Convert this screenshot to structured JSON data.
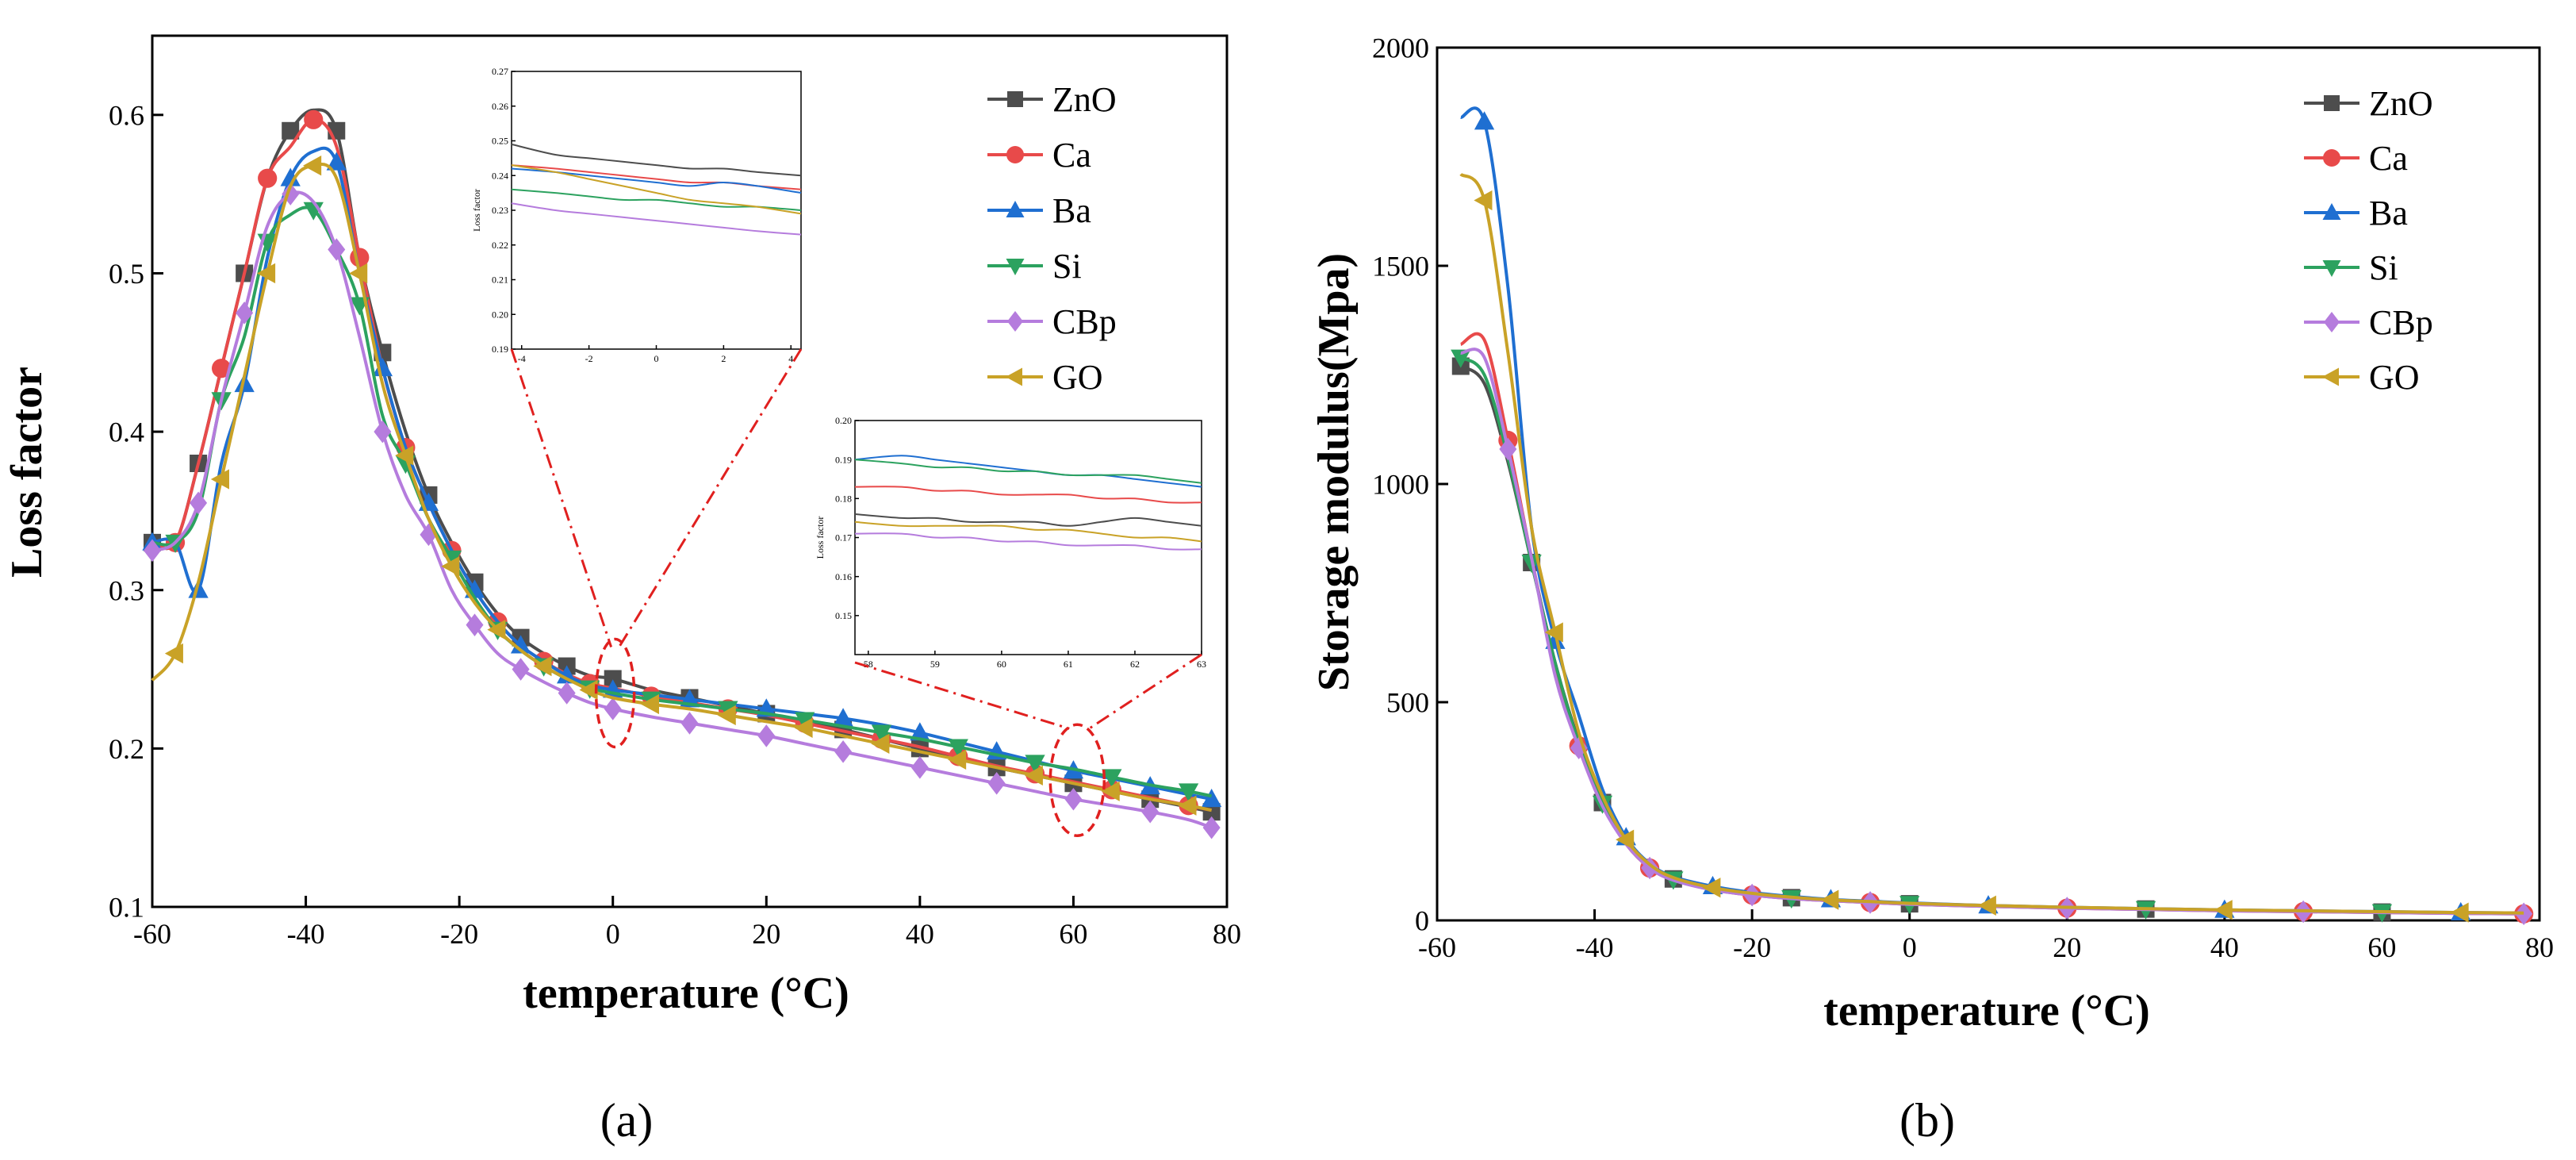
{
  "panels": {
    "a": {
      "label": "(a)"
    },
    "b": {
      "label": "(b)"
    }
  },
  "chart_data": [
    {
      "panel": "(a)",
      "type": "line",
      "xlabel": "temperature (°C)",
      "ylabel": "Loss factor",
      "xlim": [
        -60,
        80
      ],
      "ylim": [
        0.1,
        0.65
      ],
      "xticks": [
        -60,
        -40,
        -20,
        0,
        20,
        40,
        60,
        80
      ],
      "yticks": [
        0.1,
        0.2,
        0.3,
        0.4,
        0.5,
        0.6
      ],
      "x": [
        -60,
        -57,
        -54,
        -51,
        -48,
        -45,
        -42,
        -39,
        -36,
        -33,
        -30,
        -27,
        -24,
        -21,
        -18,
        -15,
        -12,
        -9,
        -6,
        -3,
        0,
        5,
        10,
        15,
        20,
        25,
        30,
        35,
        40,
        45,
        50,
        55,
        60,
        65,
        70,
        75,
        78
      ],
      "series": [
        {
          "name": "ZnO",
          "marker": "square",
          "color": "#4d4d4d",
          "values": [
            0.33,
            0.33,
            0.38,
            0.44,
            0.5,
            0.56,
            0.59,
            0.603,
            0.59,
            0.51,
            0.45,
            0.4,
            0.36,
            0.33,
            0.305,
            0.285,
            0.27,
            0.26,
            0.252,
            0.246,
            0.244,
            0.237,
            0.232,
            0.227,
            0.222,
            0.217,
            0.212,
            0.206,
            0.2,
            0.194,
            0.188,
            0.183,
            0.178,
            0.173,
            0.168,
            0.163,
            0.16
          ]
        },
        {
          "name": "Ca",
          "marker": "circle",
          "color": "#e84a4a",
          "values": [
            0.33,
            0.33,
            0.38,
            0.44,
            0.5,
            0.56,
            0.58,
            0.597,
            0.58,
            0.51,
            0.44,
            0.39,
            0.355,
            0.325,
            0.3,
            0.28,
            0.265,
            0.255,
            0.247,
            0.241,
            0.238,
            0.233,
            0.229,
            0.225,
            0.221,
            0.216,
            0.211,
            0.206,
            0.201,
            0.195,
            0.189,
            0.184,
            0.179,
            0.174,
            0.169,
            0.164,
            0.161
          ]
        },
        {
          "name": "Ba",
          "marker": "triangle-up",
          "color": "#1f6fd1",
          "values": [
            0.33,
            0.33,
            0.3,
            0.38,
            0.43,
            0.51,
            0.56,
            0.577,
            0.57,
            0.5,
            0.44,
            0.39,
            0.355,
            0.325,
            0.3,
            0.28,
            0.265,
            0.255,
            0.246,
            0.24,
            0.237,
            0.234,
            0.231,
            0.228,
            0.225,
            0.222,
            0.219,
            0.215,
            0.21,
            0.204,
            0.198,
            0.192,
            0.186,
            0.181,
            0.176,
            0.171,
            0.168
          ]
        },
        {
          "name": "Si",
          "marker": "triangle-down",
          "color": "#2ca25f",
          "values": [
            0.33,
            0.33,
            0.35,
            0.42,
            0.46,
            0.52,
            0.537,
            0.54,
            0.515,
            0.48,
            0.41,
            0.38,
            0.345,
            0.32,
            0.295,
            0.275,
            0.262,
            0.252,
            0.244,
            0.238,
            0.235,
            0.231,
            0.228,
            0.225,
            0.222,
            0.218,
            0.214,
            0.21,
            0.206,
            0.201,
            0.196,
            0.191,
            0.187,
            0.182,
            0.177,
            0.173,
            0.17
          ]
        },
        {
          "name": "CBp",
          "marker": "diamond",
          "color": "#b57cdd",
          "values": [
            0.325,
            0.33,
            0.355,
            0.42,
            0.475,
            0.53,
            0.55,
            0.545,
            0.515,
            0.46,
            0.4,
            0.36,
            0.335,
            0.3,
            0.278,
            0.26,
            0.25,
            0.242,
            0.235,
            0.229,
            0.225,
            0.22,
            0.216,
            0.212,
            0.208,
            0.203,
            0.198,
            0.193,
            0.188,
            0.183,
            0.178,
            0.173,
            0.168,
            0.164,
            0.16,
            0.155,
            0.15
          ]
        },
        {
          "name": "GO",
          "marker": "triangle-left",
          "color": "#c9a227",
          "values": [
            0.243,
            0.26,
            0.305,
            0.37,
            0.435,
            0.5,
            0.555,
            0.568,
            0.56,
            0.5,
            0.43,
            0.385,
            0.345,
            0.315,
            0.292,
            0.275,
            0.262,
            0.252,
            0.244,
            0.237,
            0.232,
            0.228,
            0.225,
            0.221,
            0.217,
            0.213,
            0.208,
            0.203,
            0.198,
            0.193,
            0.188,
            0.183,
            0.178,
            0.173,
            0.168,
            0.164,
            0.161
          ]
        }
      ],
      "insets": [
        {
          "ylabel": "Loss factor",
          "xlim": [
            -4.3,
            4.3
          ],
          "ylim": [
            0.19,
            0.27
          ],
          "xticks": [
            -4,
            -2,
            0,
            2,
            4
          ],
          "yticks": [
            0.19,
            0.2,
            0.21,
            0.22,
            0.23,
            0.24,
            0.25,
            0.26,
            0.27
          ],
          "x": [
            -4.3,
            -3,
            -2,
            -1,
            0,
            1,
            2,
            3,
            4.3
          ],
          "series": [
            {
              "name": "ZnO",
              "values": [
                0.249,
                0.246,
                0.245,
                0.244,
                0.243,
                0.242,
                0.242,
                0.241,
                0.24
              ]
            },
            {
              "name": "Ca",
              "values": [
                0.243,
                0.242,
                0.241,
                0.24,
                0.239,
                0.238,
                0.238,
                0.237,
                0.236
              ]
            },
            {
              "name": "Ba",
              "values": [
                0.242,
                0.241,
                0.24,
                0.239,
                0.238,
                0.237,
                0.238,
                0.237,
                0.235
              ]
            },
            {
              "name": "Si",
              "values": [
                0.236,
                0.235,
                0.234,
                0.233,
                0.233,
                0.232,
                0.231,
                0.231,
                0.23
              ]
            },
            {
              "name": "CBp",
              "values": [
                0.232,
                0.23,
                0.229,
                0.228,
                0.227,
                0.226,
                0.225,
                0.224,
                0.223
              ]
            },
            {
              "name": "GO",
              "values": [
                0.243,
                0.241,
                0.239,
                0.237,
                0.235,
                0.233,
                0.232,
                0.231,
                0.229
              ]
            }
          ]
        },
        {
          "ylabel": "Loss factor",
          "xlim": [
            57.8,
            63
          ],
          "ylim": [
            0.14,
            0.2
          ],
          "xticks": [
            58,
            59,
            60,
            61,
            62,
            63
          ],
          "yticks": [
            0.15,
            0.16,
            0.17,
            0.18,
            0.19,
            0.2
          ],
          "x": [
            57.8,
            58.5,
            59,
            59.5,
            60,
            60.5,
            61,
            61.5,
            62,
            62.5,
            63
          ],
          "series": [
            {
              "name": "ZnO",
              "values": [
                0.176,
                0.175,
                0.175,
                0.174,
                0.174,
                0.174,
                0.173,
                0.174,
                0.175,
                0.174,
                0.173
              ]
            },
            {
              "name": "Ca",
              "values": [
                0.183,
                0.183,
                0.182,
                0.182,
                0.181,
                0.181,
                0.181,
                0.18,
                0.18,
                0.179,
                0.179
              ]
            },
            {
              "name": "Ba",
              "values": [
                0.19,
                0.191,
                0.19,
                0.189,
                0.188,
                0.187,
                0.186,
                0.186,
                0.185,
                0.184,
                0.183
              ]
            },
            {
              "name": "Si",
              "values": [
                0.19,
                0.189,
                0.188,
                0.188,
                0.187,
                0.187,
                0.186,
                0.186,
                0.186,
                0.185,
                0.184
              ]
            },
            {
              "name": "CBp",
              "values": [
                0.171,
                0.171,
                0.17,
                0.17,
                0.169,
                0.169,
                0.168,
                0.168,
                0.168,
                0.167,
                0.167
              ]
            },
            {
              "name": "GO",
              "values": [
                0.174,
                0.173,
                0.173,
                0.173,
                0.173,
                0.172,
                0.172,
                0.171,
                0.17,
                0.17,
                0.169
              ]
            }
          ]
        }
      ],
      "legend": [
        "ZnO",
        "Ca",
        "Ba",
        "Si",
        "CBp",
        "GO"
      ],
      "legend_position": "top-right"
    },
    {
      "panel": "(b)",
      "type": "line",
      "xlabel": "temperature (°C)",
      "ylabel": "Storage modulus(Mpa)",
      "xlim": [
        -60,
        80
      ],
      "ylim": [
        0,
        2000
      ],
      "xticks": [
        -60,
        -40,
        -20,
        0,
        20,
        40,
        60,
        80
      ],
      "yticks": [
        0,
        500,
        1000,
        1500,
        2000
      ],
      "x": [
        -57,
        -54,
        -51,
        -48,
        -45,
        -42,
        -39,
        -36,
        -33,
        -30,
        -25,
        -20,
        -15,
        -10,
        -5,
        0,
        10,
        20,
        30,
        40,
        50,
        60,
        70,
        78
      ],
      "series": [
        {
          "name": "ZnO",
          "marker": "square",
          "color": "#4d4d4d",
          "values": [
            1270,
            1230,
            1050,
            820,
            590,
            410,
            270,
            180,
            125,
            95,
            72,
            60,
            52,
            46,
            42,
            38,
            33,
            29,
            26,
            23,
            21,
            19,
            17,
            16
          ]
        },
        {
          "name": "Ca",
          "marker": "circle",
          "color": "#e84a4a",
          "values": [
            1320,
            1330,
            1100,
            830,
            580,
            400,
            265,
            175,
            120,
            93,
            70,
            58,
            50,
            45,
            41,
            37,
            32,
            28,
            25,
            22,
            20,
            18,
            16,
            15
          ]
        },
        {
          "name": "Ba",
          "marker": "triangle-up",
          "color": "#1f6fd1",
          "values": [
            1840,
            1830,
            1450,
            900,
            640,
            470,
            300,
            190,
            130,
            100,
            78,
            64,
            55,
            48,
            44,
            40,
            34,
            30,
            27,
            24,
            22,
            20,
            18,
            17
          ]
        },
        {
          "name": "Si",
          "marker": "triangle-down",
          "color": "#2ca25f",
          "values": [
            1290,
            1250,
            1060,
            820,
            590,
            405,
            268,
            178,
            122,
            94,
            71,
            59,
            51,
            46,
            42,
            38,
            33,
            29,
            26,
            23,
            21,
            19,
            17,
            16
          ]
        },
        {
          "name": "CBp",
          "marker": "diamond",
          "color": "#b57cdd",
          "values": [
            1300,
            1290,
            1080,
            830,
            560,
            395,
            262,
            175,
            120,
            92,
            70,
            58,
            50,
            45,
            41,
            37,
            32,
            28,
            25,
            22,
            20,
            18,
            16,
            15
          ]
        },
        {
          "name": "GO",
          "marker": "triangle-left",
          "color": "#c9a227",
          "values": [
            1710,
            1650,
            1300,
            900,
            660,
            430,
            285,
            185,
            128,
            98,
            75,
            62,
            53,
            47,
            43,
            39,
            34,
            30,
            27,
            24,
            22,
            20,
            18,
            17
          ]
        }
      ],
      "legend": [
        "ZnO",
        "Ca",
        "Ba",
        "Si",
        "CBp",
        "GO"
      ],
      "legend_position": "top-right"
    }
  ]
}
